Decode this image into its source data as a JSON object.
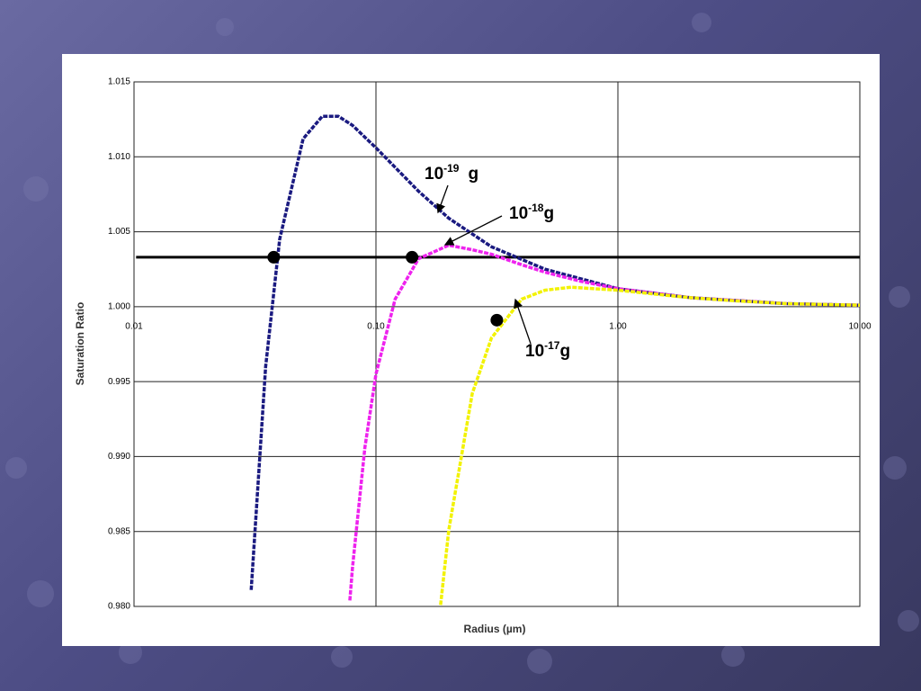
{
  "chart_data": {
    "type": "line",
    "xscale": "log",
    "x_label": "Radius (µm)",
    "y_label": "Saturation Ratio",
    "xlim": [
      0.01,
      10
    ],
    "xticks": [
      0.01,
      {
        "value": 0.1,
        "label": "0.10"
      },
      {
        "value": 1,
        "label": "1.00"
      },
      {
        "value": 10,
        "label": "10.00"
      }
    ],
    "ylim": [
      0.98,
      1.015
    ],
    "yticks": [
      {
        "value": 0.98,
        "label": "0.980"
      },
      0.985,
      {
        "value": 0.99,
        "label": "0.990"
      },
      0.995,
      {
        "value": 1,
        "label": "1.000"
      },
      1.005,
      {
        "value": 1.01,
        "label": "1.010"
      },
      1.015
    ],
    "grid": true,
    "series": [
      {
        "color": "#1a1a80",
        "x": [
          0.0305,
          0.035,
          0.04,
          0.05,
          0.06,
          0.07,
          0.08,
          0.1,
          0.12,
          0.15,
          0.2,
          0.3,
          0.5,
          1,
          2,
          5,
          10
        ],
        "values": [
          0.9811,
          0.996,
          1.0045,
          1.0112,
          1.0127,
          1.0127,
          1.0121,
          1.0106,
          1.0093,
          1.0077,
          1.0059,
          1.004,
          1.0025,
          1.0012,
          1.0006,
          1.0002,
          1.0001
        ]
      },
      {
        "color": "#ee22ee",
        "x": [
          0.078,
          0.08,
          0.09,
          0.1,
          0.12,
          0.15,
          0.2,
          0.25,
          0.3,
          0.4,
          0.5,
          0.7,
          1,
          2,
          5,
          10
        ],
        "values": [
          0.9804,
          0.9826,
          0.9906,
          0.9955,
          1.0005,
          1.0032,
          1.0041,
          1.0038,
          1.0035,
          1.0028,
          1.0023,
          1.0017,
          1.0012,
          1.0006,
          1.0002,
          1.0001
        ]
      },
      {
        "color": "#f2f200",
        "x": [
          0.185,
          0.2,
          0.25,
          0.3,
          0.4,
          0.5,
          0.64,
          0.8,
          1,
          1.5,
          2,
          3,
          5,
          10
        ],
        "values": [
          0.9801,
          0.9851,
          0.9942,
          0.9979,
          1.0005,
          1.0011,
          1.0013,
          1.0012,
          1.0011,
          1.0008,
          1.0006,
          1.0004,
          1.0002,
          1.0001
        ]
      }
    ],
    "reference_line": {
      "y": 1.0033,
      "x": [
        0.0102,
        10
      ]
    },
    "markers": [
      {
        "x": 0.0378,
        "y": 1.0033
      },
      {
        "x": 0.141,
        "y": 1.0033
      },
      {
        "x": 0.316,
        "y": 0.9991
      }
    ],
    "annotations": [
      {
        "base": "10",
        "exponent": "-19",
        "unit": "g"
      },
      {
        "base": "10",
        "exponent": "-18",
        "unit": "g"
      },
      {
        "base": "10",
        "exponent": "-17",
        "unit": "g"
      }
    ]
  }
}
